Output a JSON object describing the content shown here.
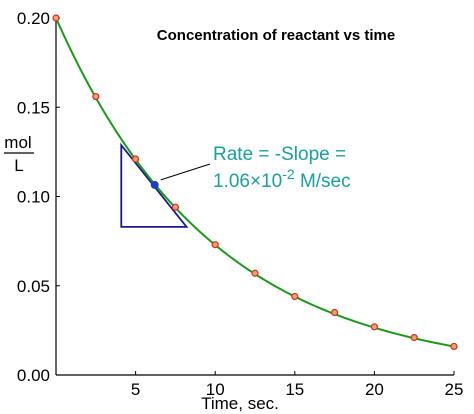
{
  "chart_data": {
    "type": "line",
    "title": "Concentration of reactant vs time",
    "xlabel": "Time, sec.",
    "ylabel_numerator": "mol",
    "ylabel_denominator": "L",
    "xlim": [
      0,
      25
    ],
    "ylim": [
      0,
      0.2
    ],
    "x_ticks": [
      5,
      10,
      15,
      20,
      25
    ],
    "y_ticks": [
      0.0,
      0.05,
      0.1,
      0.15,
      0.2
    ],
    "x_tick_labels": [
      "5",
      "10",
      "15",
      "20",
      "25"
    ],
    "y_tick_labels": [
      "0.00",
      "0.05",
      "0.10",
      "0.15",
      "0.20"
    ],
    "grid": false,
    "series": [
      {
        "color": "#1a9a1a",
        "point_color": "#d03020",
        "x": [
          0,
          2.5,
          5,
          7.5,
          10,
          12.5,
          15,
          17.5,
          20,
          22.5,
          25
        ],
        "y": [
          0.2,
          0.156,
          0.121,
          0.094,
          0.073,
          0.057,
          0.044,
          0.035,
          0.027,
          0.021,
          0.016
        ]
      }
    ],
    "tangent": {
      "point": [
        6.2,
        0.1065
      ],
      "slope": -0.0106,
      "color": "#1a1a8c",
      "point_color": "#1a40c0",
      "triangle_x": [
        4.1,
        8.2
      ],
      "triangle_y_bottom": 0.083
    },
    "annotation": {
      "line1": "Rate = -Slope =",
      "line2_mantissa": "1.06×10",
      "line2_exponent": "-2",
      "line2_unit": "M/sec",
      "color": "#1aa0a0"
    }
  }
}
